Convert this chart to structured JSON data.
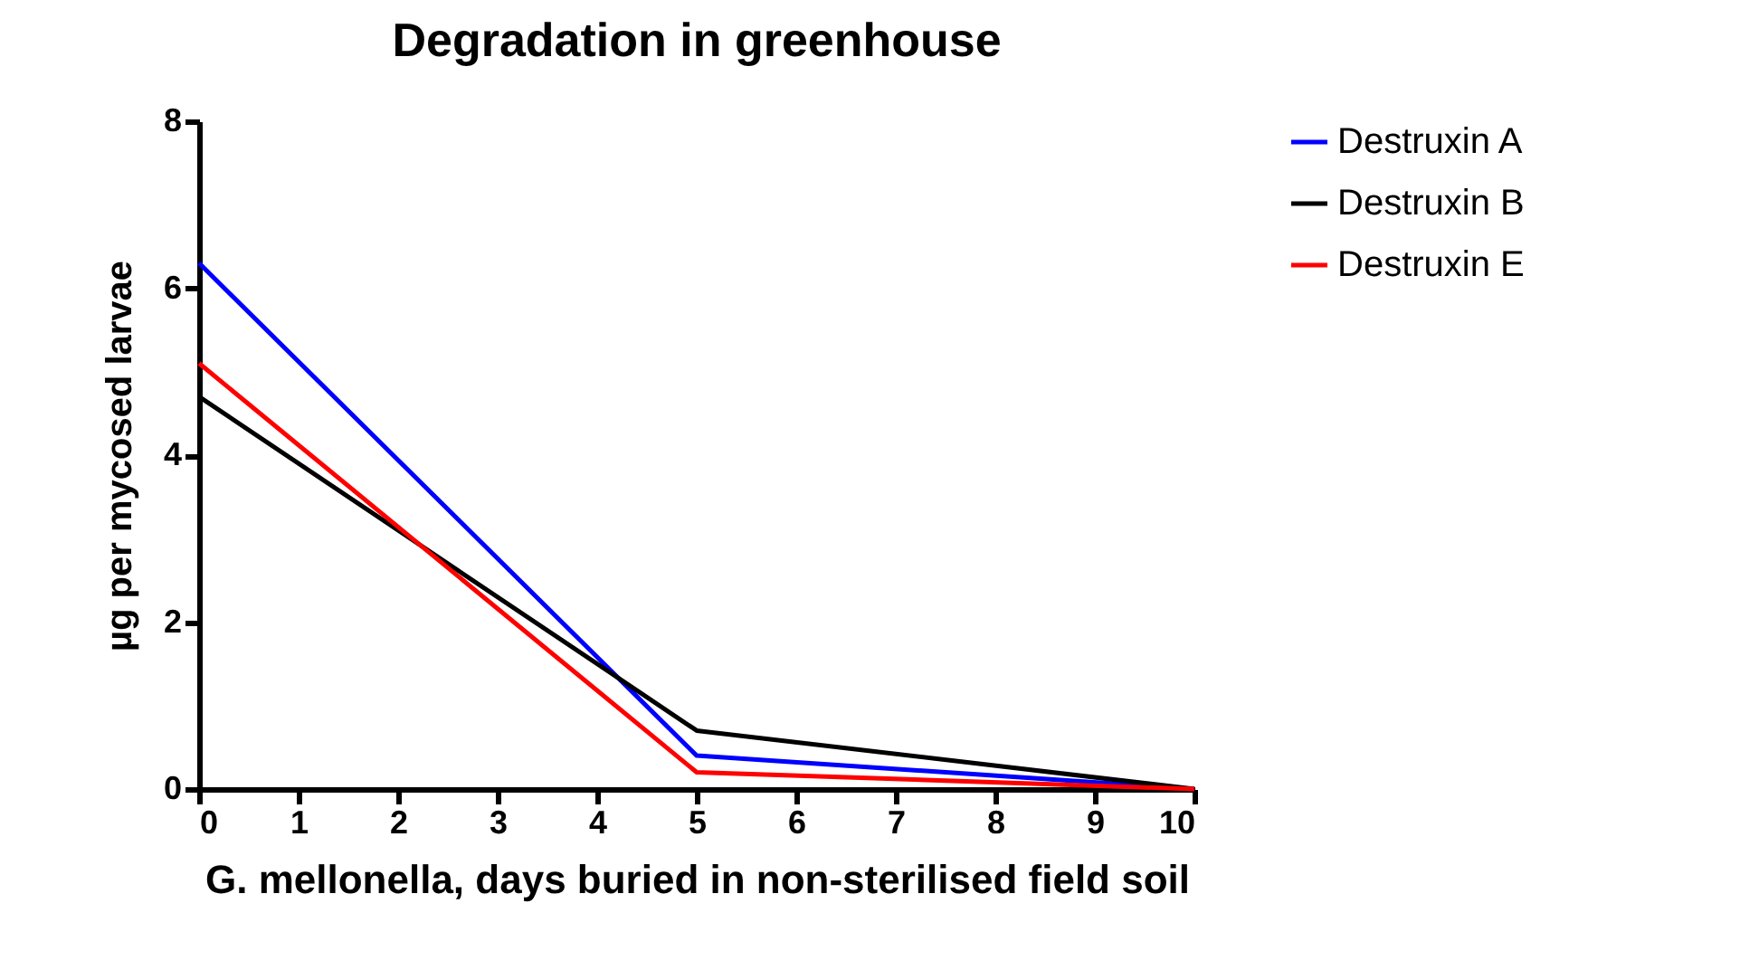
{
  "chart_data": {
    "type": "line",
    "title": "Degradation in greenhouse",
    "xlabel": "G. mellonella, days buried in non-sterilised field soil",
    "ylabel": "µg per mycosed larvae",
    "x": [
      0,
      5,
      10
    ],
    "series": [
      {
        "name": "Destruxin A",
        "color": "#0000ff",
        "values": [
          6.3,
          0.4,
          0
        ]
      },
      {
        "name": "Destruxin B",
        "color": "#000000",
        "values": [
          4.7,
          0.7,
          0
        ]
      },
      {
        "name": "Destruxin E",
        "color": "#ff0000",
        "values": [
          5.1,
          0.2,
          0
        ]
      }
    ],
    "xlim": [
      0,
      10
    ],
    "xticks": [
      0,
      1,
      2,
      3,
      4,
      5,
      6,
      7,
      8,
      9,
      10
    ],
    "ylim": [
      0,
      8
    ],
    "yticks": [
      0,
      2,
      4,
      6,
      8
    ],
    "grid": false,
    "legend": "top right",
    "marker": "none",
    "line_style": "solid"
  }
}
